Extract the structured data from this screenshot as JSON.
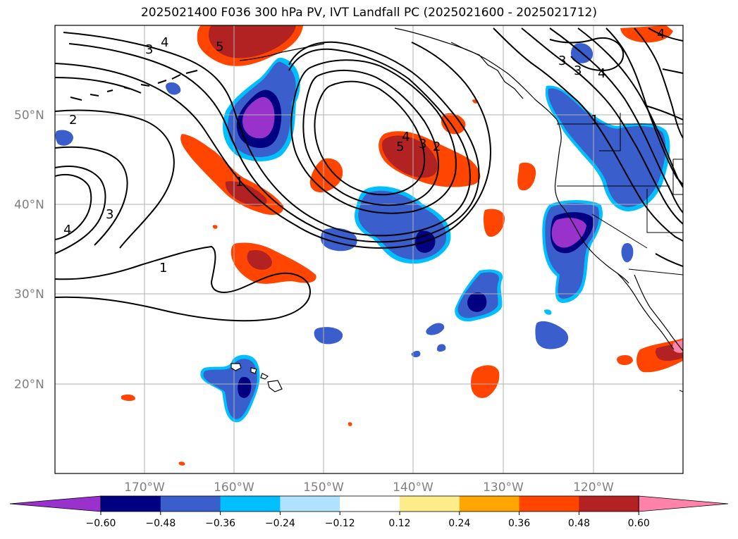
{
  "title": "2025021400 F036 300 hPa PV, IVT Landfall PC (2025021600 - 2025021712)",
  "map": {
    "lat_labels": [
      "50°N",
      "40°N",
      "30°N",
      "20°N"
    ],
    "lon_labels": [
      "170°W",
      "160°W",
      "150°W",
      "140°W",
      "130°W",
      "120°W"
    ],
    "grid": true,
    "contour_labels": [
      "2",
      "3",
      "4",
      "3",
      "4",
      "1",
      "1",
      "5",
      "3",
      "4",
      "5",
      "4",
      "3",
      "1",
      "4",
      "3",
      "2"
    ]
  },
  "colorbar": {
    "colors": [
      "#9932cc",
      "#000080",
      "#3a5fcd",
      "#00bfff",
      "#b0e2ff",
      "#ffffff",
      "#ffec8b",
      "#ffa500",
      "#ff4500",
      "#b22222",
      "#ff82ab"
    ],
    "tick_labels": [
      "−0.60",
      "−0.48",
      "−0.36",
      "−0.24",
      "−0.12",
      "0.12",
      "0.24",
      "0.36",
      "0.48",
      "0.60"
    ],
    "extend": "both"
  },
  "legend_colors": {
    "neg_strong": "#9932cc",
    "neg_dark": "#000080",
    "neg_mid": "#3a5fcd",
    "neg_light": "#00bfff",
    "pos_light": "#ffec8b",
    "pos_mid": "#ffa500",
    "pos_orange": "#ff4500",
    "pos_red": "#b22222"
  }
}
